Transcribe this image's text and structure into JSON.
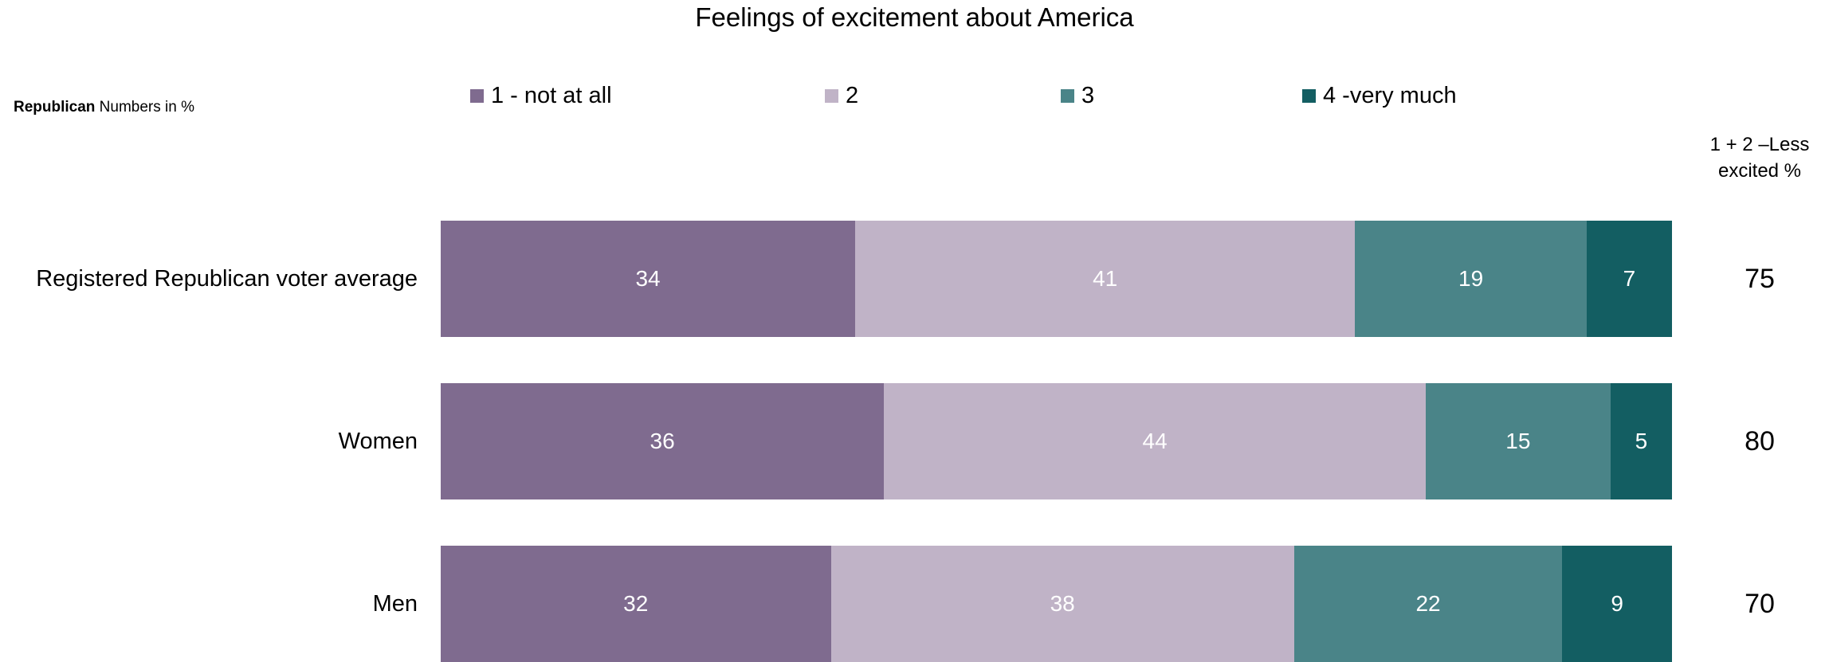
{
  "chart_data": {
    "type": "bar",
    "orientation": "horizontal",
    "stacked": true,
    "title": "Feelings of excitement about America",
    "subtitle_bold": "Republican",
    "subtitle_rest": " Numbers in %",
    "categories": [
      "Registered Republican voter average",
      "Women",
      "Men"
    ],
    "series": [
      {
        "name": "1 - not at all",
        "color": "#7f6b8f",
        "values": [
          34,
          36,
          32
        ]
      },
      {
        "name": "2",
        "color": "#c0b3c7",
        "values": [
          41,
          44,
          38
        ]
      },
      {
        "name": "3",
        "color": "#4a8488",
        "values": [
          19,
          15,
          22
        ]
      },
      {
        "name": "4 -very much",
        "color": "#135e62",
        "values": [
          7,
          5,
          9
        ]
      }
    ],
    "side_column": {
      "header_line1": "1 + 2 –Less",
      "header_line2": "excited %",
      "values": [
        75,
        80,
        70
      ]
    },
    "legend_position": "top",
    "grid": false
  }
}
